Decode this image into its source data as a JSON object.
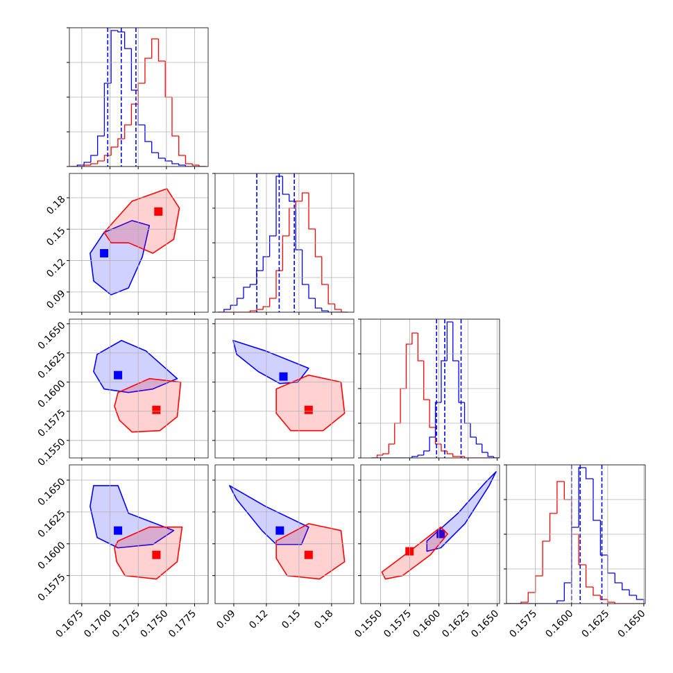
{
  "chart_data": [
    {
      "type": "histogram",
      "xlim": [
        0.1664,
        0.1787
      ],
      "xticks": [
        0.1675,
        0.17,
        0.1725,
        0.175,
        0.1775
      ],
      "ylim": [
        0,
        1
      ],
      "yticks": [
        0,
        0.25,
        0.5,
        0.75,
        1
      ],
      "grid": true,
      "bins": [
        0.1665,
        0.1671,
        0.1677,
        0.1683,
        0.1689,
        0.1695,
        0.1701,
        0.1707,
        0.1713,
        0.1719,
        0.1725,
        0.1731,
        0.1737,
        0.1743,
        0.1749,
        0.1755,
        0.1761,
        0.1767,
        0.1773,
        0.1779,
        0.1785
      ],
      "series": [
        {
          "color": "#0000ff",
          "values": [
            0,
            0.01,
            0.03,
            0.08,
            0.22,
            0.6,
            0.98,
            0.97,
            0.85,
            0.55,
            0.3,
            0.18,
            0.1,
            0.06,
            0.04,
            0.02,
            0.01,
            0,
            0,
            0
          ]
        },
        {
          "color": "#ff0000",
          "values": [
            0,
            0,
            0.01,
            0.02,
            0.04,
            0.08,
            0.14,
            0.2,
            0.3,
            0.45,
            0.6,
            0.78,
            0.92,
            0.76,
            0.5,
            0.22,
            0.08,
            0.02,
            0.01,
            0
          ]
        }
      ],
      "quantiles": [
        0.1698,
        0.171,
        0.1723
      ],
      "quantile_color": "#0000ff"
    },
    {
      "type": "contour",
      "xlim": [
        0.1664,
        0.1787
      ],
      "xticks": [
        0.1675,
        0.17,
        0.1725,
        0.175,
        0.1775
      ],
      "ylim": [
        0.0707,
        0.2032
      ],
      "yticks": [
        0.09,
        0.12,
        0.15,
        0.18
      ],
      "grid": true,
      "series": [
        {
          "color": "#0000ff",
          "contour_x": [
            0.16824,
            0.16948,
            0.17195,
            0.17349,
            0.17287,
            0.17164,
            0.1701,
            0.16855
          ],
          "contour_y": [
            0.127,
            0.1469,
            0.1582,
            0.1535,
            0.1237,
            0.0939,
            0.0873,
            0.1005
          ],
          "peak_x": 0.16948,
          "peak_y": 0.127
        },
        {
          "color": "#ff0000",
          "contour_x": [
            0.16948,
            0.17195,
            0.17504,
            0.17615,
            0.17565,
            0.1738,
            0.17164,
            0.1701
          ],
          "contour_y": [
            0.1469,
            0.1767,
            0.1886,
            0.1701,
            0.1403,
            0.127,
            0.137,
            0.137
          ],
          "peak_x": 0.17429,
          "peak_y": 0.1668
        }
      ]
    },
    {
      "type": "histogram",
      "xlim": [
        0.0728,
        0.2005
      ],
      "xticks": [
        0.09,
        0.12,
        0.15,
        0.18
      ],
      "ylim": [
        0,
        1
      ],
      "yticks": [
        0,
        0.25,
        0.5,
        0.75,
        1
      ],
      "grid": true,
      "bins": [
        0.075,
        0.081,
        0.087,
        0.093,
        0.099,
        0.105,
        0.111,
        0.117,
        0.123,
        0.129,
        0.135,
        0.141,
        0.147,
        0.153,
        0.159,
        0.165,
        0.171,
        0.177,
        0.183,
        0.189,
        0.195
      ],
      "series": [
        {
          "color": "#0000ff",
          "values": [
            0,
            0.02,
            0.05,
            0.1,
            0.18,
            0.2,
            0.3,
            0.4,
            0.55,
            0.98,
            0.85,
            0.8,
            0.45,
            0.2,
            0.1,
            0.03,
            0.01,
            0,
            0,
            0
          ]
        },
        {
          "color": "#ff0000",
          "values": [
            0,
            0,
            0,
            0,
            0,
            0.01,
            0.02,
            0.04,
            0.1,
            0.3,
            0.55,
            0.75,
            0.8,
            0.86,
            0.6,
            0.4,
            0.2,
            0.06,
            0.02,
            0
          ]
        }
      ],
      "quantiles": [
        0.1112,
        0.1318,
        0.1457
      ],
      "quantile_color": "#0000ff"
    },
    {
      "type": "contour",
      "xlim": [
        0.1664,
        0.1787
      ],
      "xticks": [
        0.1675,
        0.17,
        0.1725,
        0.175,
        0.1775
      ],
      "ylim": [
        0.1535,
        0.1654
      ],
      "yticks": [
        {
          "value": 0.155,
          "label": "0.1550"
        },
        {
          "value": 0.1575,
          "label": "0.1575"
        },
        {
          "value": 0.16,
          "label": "0.1600"
        },
        {
          "value": 0.1625,
          "label": "0.1625"
        },
        {
          "value": 0.165,
          "label": "0.1650"
        }
      ],
      "grid": true,
      "series": [
        {
          "color": "#0000ff",
          "contour_x": [
            0.16886,
            0.17102,
            0.17318,
            0.17596,
            0.1738,
            0.17164,
            0.16948,
            0.16855
          ],
          "contour_y": [
            0.16238,
            0.16357,
            0.16268,
            0.1603,
            0.15941,
            0.15911,
            0.15941,
            0.1609
          ],
          "peak_x": 0.17071,
          "peak_y": 0.1606
        },
        {
          "color": "#ff0000",
          "contour_x": [
            0.17071,
            0.17349,
            0.17627,
            0.17596,
            0.17442,
            0.17195,
            0.17084,
            0.1704
          ],
          "contour_y": [
            0.15911,
            0.1603,
            0.16,
            0.15703,
            0.15584,
            0.15572,
            0.15673,
            0.15792
          ],
          "peak_x": 0.17411,
          "peak_y": 0.15762
        }
      ]
    },
    {
      "type": "contour",
      "xlim": [
        0.0728,
        0.2005
      ],
      "xticks": [
        0.09,
        0.12,
        0.15,
        0.18
      ],
      "ylim": [
        0.1535,
        0.1654
      ],
      "yticks": [
        0.155,
        0.1575,
        0.16,
        0.1625,
        0.165
      ],
      "grid": true,
      "series": [
        {
          "color": "#0000ff",
          "contour_x": [
            0.0894,
            0.1192,
            0.1589,
            0.149,
            0.1324,
            0.1126,
            0.0927
          ],
          "contour_y": [
            0.16357,
            0.16268,
            0.16119,
            0.16,
            0.15988,
            0.1609,
            0.16238
          ],
          "peak_x": 0.1357,
          "peak_y": 0.16048
        },
        {
          "color": "#ff0000",
          "contour_x": [
            0.1291,
            0.1589,
            0.1887,
            0.192,
            0.1722,
            0.1424,
            0.1291
          ],
          "contour_y": [
            0.15941,
            0.1606,
            0.16,
            0.15733,
            0.15584,
            0.15584,
            0.15733
          ],
          "peak_x": 0.1589,
          "peak_y": 0.15762
        }
      ]
    },
    {
      "type": "histogram",
      "xlim": [
        0.1533,
        0.1652
      ],
      "xticks": [
        0.155,
        0.1575,
        0.16,
        0.1625,
        0.165
      ],
      "ylim": [
        0,
        1
      ],
      "yticks": [
        0,
        0.25,
        0.5,
        0.75,
        1
      ],
      "grid": true,
      "bins": [
        0.1542,
        0.1547,
        0.1552,
        0.1557,
        0.1562,
        0.1567,
        0.1572,
        0.1577,
        0.1582,
        0.1587,
        0.1592,
        0.1597,
        0.1602,
        0.1607,
        0.1612,
        0.1617,
        0.1622,
        0.1627,
        0.1632,
        0.1637,
        0.1642,
        0.1647,
        0.1652
      ],
      "series": [
        {
          "color": "#ff0000",
          "values": [
            0,
            0.02,
            0.03,
            0.1,
            0.25,
            0.5,
            0.82,
            0.9,
            0.7,
            0.42,
            0.22,
            0.1,
            0.05,
            0.03,
            0.01,
            0.01,
            0,
            0,
            0,
            0,
            0,
            0
          ]
        },
        {
          "color": "#0000ff",
          "values": [
            0,
            0,
            0,
            0,
            0,
            0,
            0,
            0.01,
            0.02,
            0.05,
            0.15,
            0.4,
            0.7,
            0.98,
            0.7,
            0.4,
            0.25,
            0.15,
            0.1,
            0.04,
            0.01,
            0
          ]
        }
      ],
      "quantiles": [
        0.1598,
        0.1605,
        0.1619
      ],
      "quantile_color": "#0000ff"
    },
    {
      "type": "contour",
      "xlim": [
        0.1664,
        0.1787
      ],
      "xticks": [
        {
          "value": 0.1675,
          "label": "0.1675"
        },
        {
          "value": 0.17,
          "label": "0.1700"
        },
        {
          "value": 0.1725,
          "label": "0.1725"
        },
        {
          "value": 0.175,
          "label": "0.1750"
        },
        {
          "value": 0.1775,
          "label": "0.1775"
        }
      ],
      "ylim": [
        0.1553,
        0.1662
      ],
      "yticks": [
        {
          "value": 0.1575,
          "label": "0.1575"
        },
        {
          "value": 0.16,
          "label": "0.1600"
        },
        {
          "value": 0.1625,
          "label": "0.1625"
        },
        {
          "value": 0.165,
          "label": "0.1650"
        }
      ],
      "grid": true,
      "series": [
        {
          "color": "#0000ff",
          "contour_x": [
            0.16855,
            0.17071,
            0.17164,
            0.17565,
            0.1738,
            0.17071,
            0.16886,
            0.16824
          ],
          "contour_y": [
            0.16457,
            0.16457,
            0.1624,
            0.16104,
            0.15995,
            0.15968,
            0.16049,
            0.16294
          ],
          "peak_x": 0.17071,
          "peak_y": 0.16104
        },
        {
          "color": "#ff0000",
          "contour_x": [
            0.17071,
            0.17349,
            0.17639,
            0.17596,
            0.17411,
            0.17133,
            0.17059,
            0.1704
          ],
          "contour_y": [
            0.16022,
            0.16131,
            0.16131,
            0.15859,
            0.15723,
            0.1575,
            0.15859,
            0.15968
          ],
          "peak_x": 0.17411,
          "peak_y": 0.15913
        }
      ]
    },
    {
      "type": "contour",
      "xlim": [
        0.0728,
        0.2005
      ],
      "xticks": [
        0.09,
        0.12,
        0.15,
        0.18
      ],
      "ylim": [
        0.1553,
        0.1662
      ],
      "yticks": [
        0.1575,
        0.16,
        0.1625,
        0.165
      ],
      "grid": true,
      "series": [
        {
          "color": "#0000ff",
          "contour_x": [
            0.0861,
            0.1192,
            0.1589,
            0.1523,
            0.1291,
            0.1159,
            0.0927
          ],
          "contour_y": [
            0.16457,
            0.16294,
            0.16131,
            0.15995,
            0.15995,
            0.16104,
            0.16348
          ],
          "peak_x": 0.1324,
          "peak_y": 0.16104
        },
        {
          "color": "#ff0000",
          "contour_x": [
            0.1291,
            0.1589,
            0.1887,
            0.192,
            0.1689,
            0.1391,
            0.1291
          ],
          "contour_y": [
            0.16022,
            0.16158,
            0.16104,
            0.15859,
            0.15723,
            0.1575,
            0.15886
          ],
          "peak_x": 0.1589,
          "peak_y": 0.15913
        }
      ]
    },
    {
      "type": "contour",
      "xlim": [
        0.1533,
        0.1652
      ],
      "xticks": [
        {
          "value": 0.155,
          "label": "0.1550"
        },
        {
          "value": 0.1575,
          "label": "0.1575"
        },
        {
          "value": 0.16,
          "label": "0.1600"
        },
        {
          "value": 0.1625,
          "label": "0.1625"
        },
        {
          "value": 0.165,
          "label": "0.1650"
        }
      ],
      "ylim": [
        0.1553,
        0.1662
      ],
      "yticks": [
        0.1575,
        0.16,
        0.1625,
        0.165
      ],
      "grid": true,
      "series": [
        {
          "color": "#0000ff",
          "contour_x": [
            0.15897,
            0.16164,
            0.16401,
            0.1649,
            0.16431,
            0.16223,
            0.16016,
            0.15897
          ],
          "contour_y": [
            0.16022,
            0.1624,
            0.16484,
            0.16566,
            0.16457,
            0.16158,
            0.15968,
            0.15941
          ],
          "peak_x": 0.16016,
          "peak_y": 0.16077
        },
        {
          "color": "#ff0000",
          "contour_x": [
            0.15511,
            0.15748,
            0.16016,
            0.16075,
            0.15927,
            0.15689,
            0.15541
          ],
          "contour_y": [
            0.15778,
            0.15941,
            0.16131,
            0.16077,
            0.15913,
            0.1575,
            0.15723
          ],
          "peak_x": 0.15748,
          "peak_y": 0.15941
        }
      ]
    },
    {
      "type": "histogram",
      "xlim": [
        0.1555,
        0.1651
      ],
      "xticks": [
        {
          "value": 0.1575,
          "label": "0.1575"
        },
        {
          "value": 0.16,
          "label": "0.1600"
        },
        {
          "value": 0.1625,
          "label": "0.1625"
        },
        {
          "value": 0.165,
          "label": "0.1650"
        }
      ],
      "ylim": [
        0,
        1
      ],
      "yticks": [
        0,
        0.25,
        0.5,
        0.75,
        1
      ],
      "grid": true,
      "bins": [
        0.1555,
        0.156,
        0.1565,
        0.157,
        0.1575,
        0.158,
        0.1585,
        0.159,
        0.1595,
        0.16,
        0.1605,
        0.161,
        0.1615,
        0.162,
        0.1625,
        0.163,
        0.1635,
        0.164,
        0.1645,
        0.165
      ],
      "series": [
        {
          "color": "#ff0000",
          "values": [
            0,
            0,
            0.01,
            0.08,
            0.2,
            0.45,
            0.65,
            0.88,
            0.75,
            0.5,
            0.28,
            0.12,
            0.06,
            0.03,
            0.01,
            0,
            0,
            0,
            0
          ]
        },
        {
          "color": "#0000ff",
          "values": [
            0,
            0,
            0,
            0,
            0,
            0,
            0,
            0.02,
            0.15,
            0.55,
            0.98,
            0.9,
            0.6,
            0.35,
            0.22,
            0.15,
            0.1,
            0.06,
            0.03
          ]
        }
      ],
      "quantiles": [
        0.16,
        0.1606,
        0.1621
      ],
      "quantile_color": "#0000ff"
    }
  ]
}
